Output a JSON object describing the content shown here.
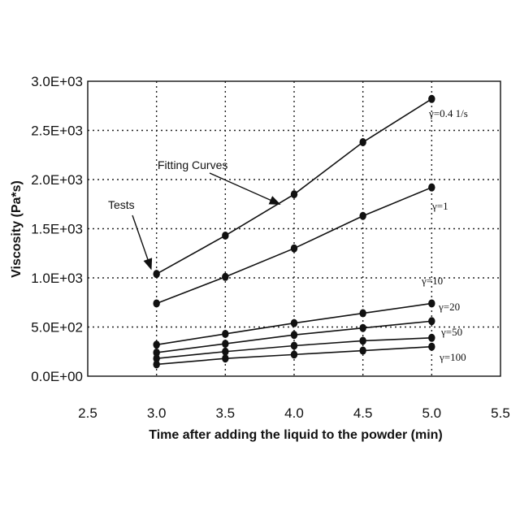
{
  "chart_data": {
    "type": "line",
    "title": "",
    "xlabel": "Time after adding the liquid to the powder (min)",
    "ylabel": "Viscosity (Pa*s)",
    "xlim": [
      2.5,
      5.5
    ],
    "ylim": [
      0,
      3000
    ],
    "xticks": [
      2.5,
      3.0,
      3.5,
      4.0,
      4.5,
      5.0,
      5.5
    ],
    "xtick_labels": [
      "2.5",
      "3.0",
      "3.5",
      "4.0",
      "4.5",
      "5.0",
      "5.5"
    ],
    "yticks": [
      0,
      500,
      1000,
      1500,
      2000,
      2500,
      3000
    ],
    "ytick_labels": [
      "0.0E+00",
      "5.0E+02",
      "1.0E+03",
      "1.5E+03",
      "2.0E+03",
      "2.5E+03",
      "3.0E+03"
    ],
    "grid": true,
    "x": [
      3.0,
      3.5,
      4.0,
      4.5,
      5.0
    ],
    "series": [
      {
        "name": "γ=0.4 1/s",
        "values": [
          1040,
          1430,
          1850,
          2380,
          2820
        ]
      },
      {
        "name": "γ=1",
        "values": [
          740,
          1010,
          1300,
          1630,
          1920
        ]
      },
      {
        "name": "γ=10",
        "values": [
          320,
          430,
          540,
          640,
          740
        ]
      },
      {
        "name": "γ=20",
        "values": [
          240,
          330,
          420,
          490,
          560
        ]
      },
      {
        "name": "γ=50",
        "values": [
          180,
          250,
          310,
          360,
          390
        ]
      },
      {
        "name": "γ=100",
        "values": [
          120,
          180,
          220,
          260,
          300
        ]
      }
    ],
    "annotations": [
      {
        "text": "Fitting Curves",
        "target_x": 4.25,
        "target_y": 1650
      },
      {
        "text": "Tests",
        "target_x": 2.98,
        "target_y": 1080
      }
    ]
  }
}
